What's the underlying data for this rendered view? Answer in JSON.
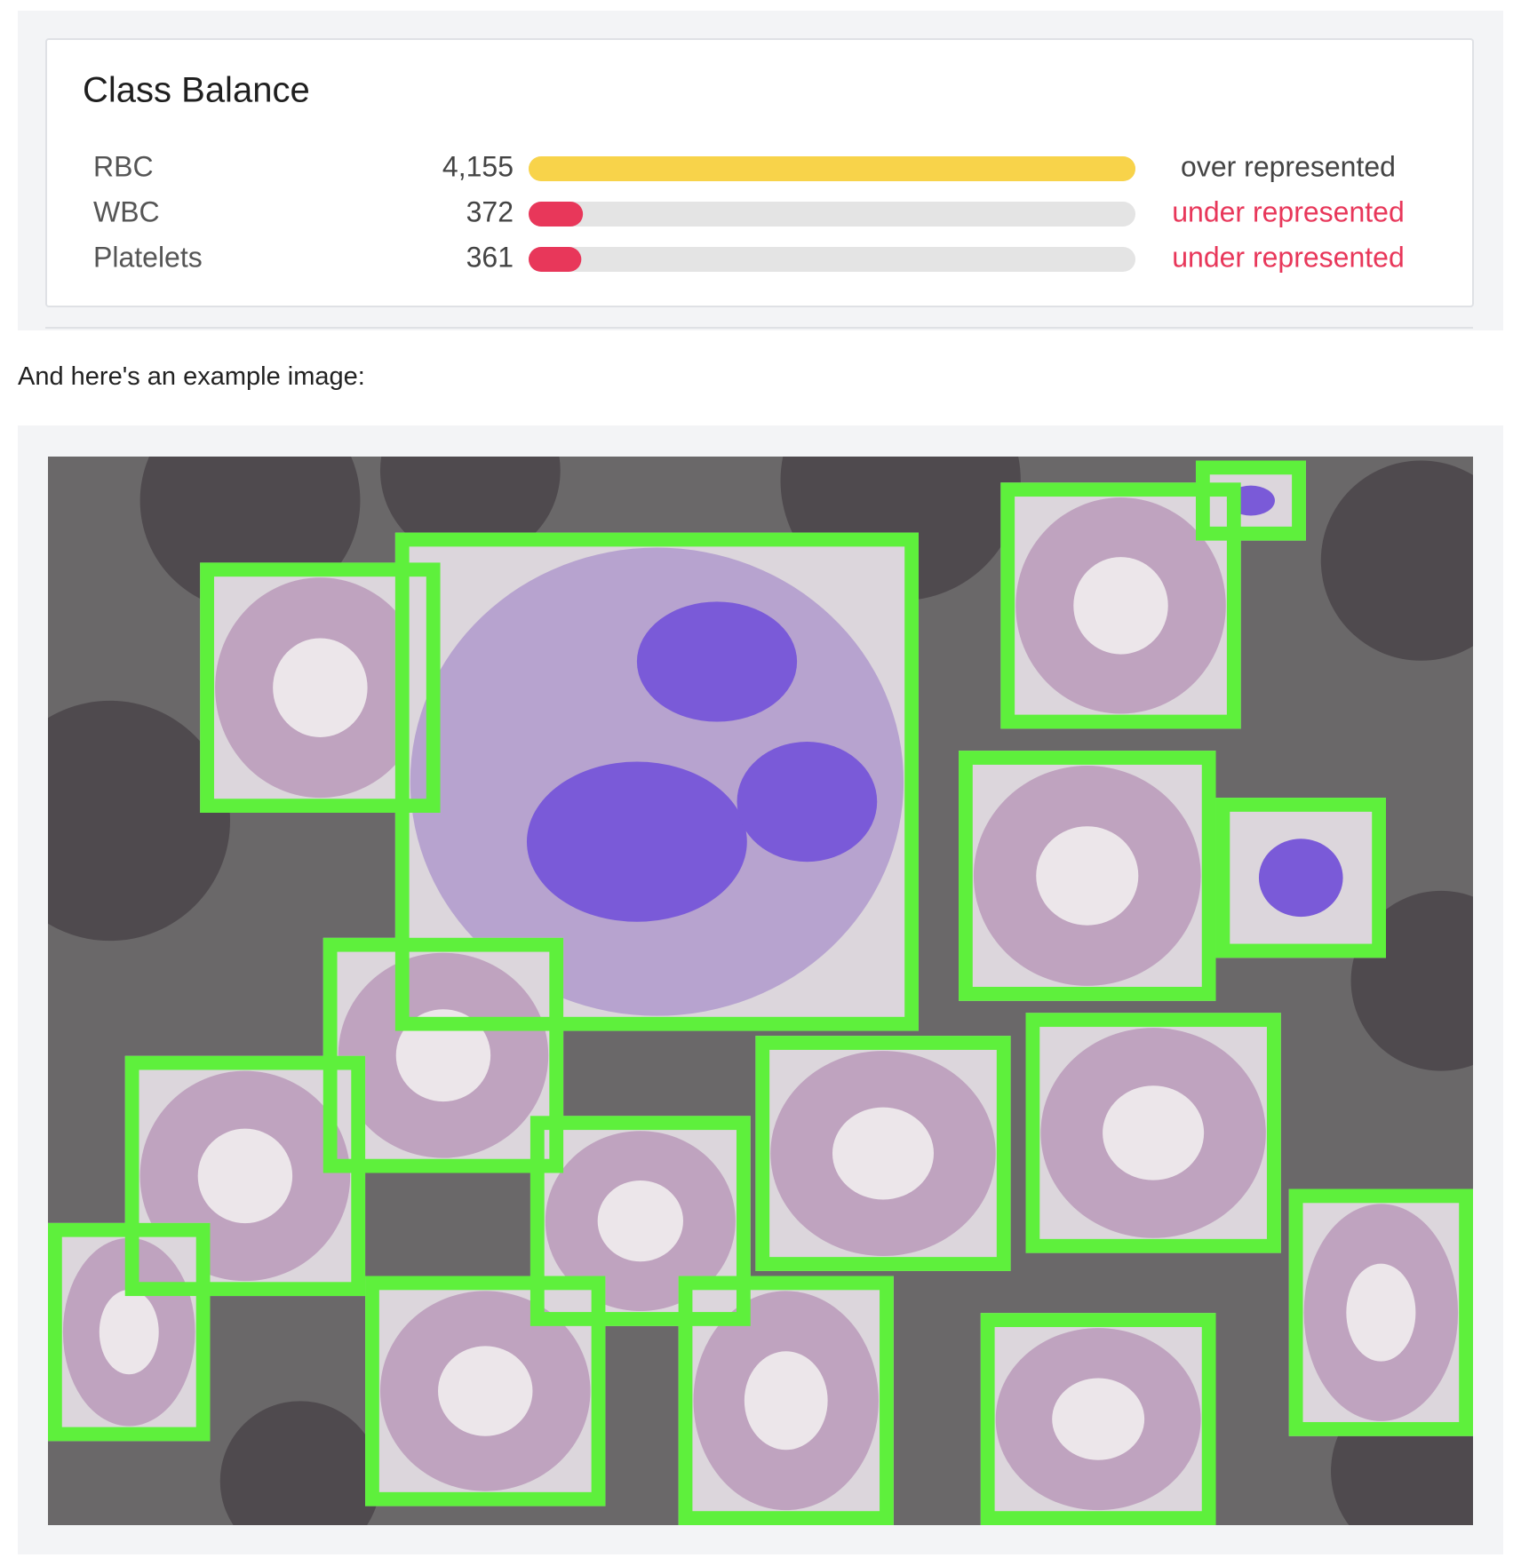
{
  "class_balance": {
    "title": "Class Balance",
    "rows": [
      {
        "label": "RBC",
        "count": {
          "value": 4155,
          "label": "4,155"
        },
        "status": "over represented",
        "color": "#f8d34a",
        "status_color": "#444444"
      },
      {
        "label": "WBC",
        "count": {
          "value": 372,
          "label": "372"
        },
        "status": "under represented",
        "color": "#e8375a",
        "status_color": "#e8375a"
      },
      {
        "label": "Platelets",
        "count": {
          "value": 361,
          "label": "361"
        },
        "status": "under represented",
        "color": "#e8375a",
        "status_color": "#e8375a"
      }
    ]
  },
  "caption": "And here's an example image:"
}
